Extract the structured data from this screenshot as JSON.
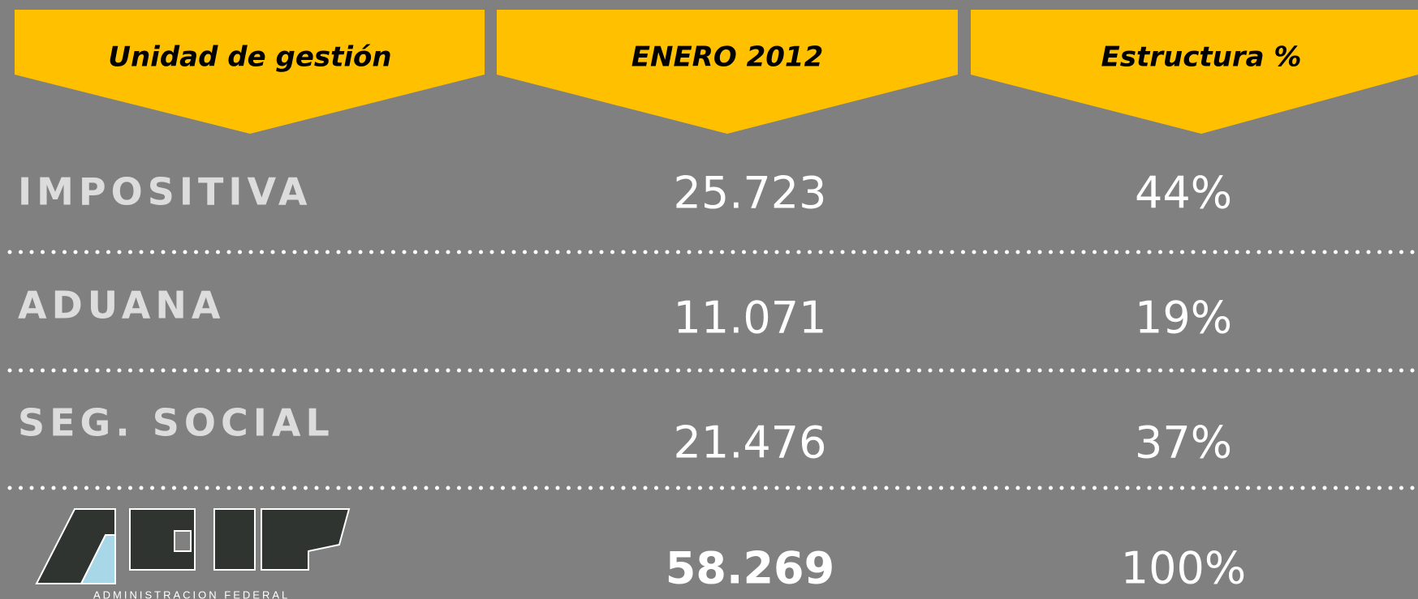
{
  "table": {
    "header": [
      "Unidad de gestión",
      "ENERO 2012",
      "Estructura %"
    ],
    "rows": [
      [
        "IMPOSITIVA",
        "25.723",
        "44%"
      ],
      [
        "ADUANA",
        "11.071",
        "19%"
      ],
      [
        "SEG. SOCIAL",
        "21.476",
        "37%"
      ]
    ],
    "total": [
      "58.269",
      "100%"
    ]
  },
  "logo": {
    "caption": "ADMINISTRACION FEDERAL"
  }
}
